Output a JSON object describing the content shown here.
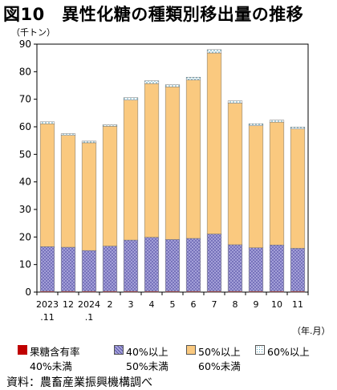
{
  "header": {
    "title": "図10　異性化糖の種類別移出量の推移"
  },
  "source_note": "資料：農畜産業振興機構調べ",
  "chart_data": {
    "type": "bar",
    "stacked": true,
    "title": "図10　異性化糖の種類別移出量の推移",
    "ylabel": "（千トン）",
    "xlabel": "（年.月）",
    "ylim": [
      0,
      90
    ],
    "yticks": [
      0,
      10,
      20,
      30,
      40,
      50,
      60,
      70,
      80,
      90
    ],
    "grid": false,
    "legend_position": "bottom",
    "categories": [
      {
        "line1": "2023",
        "line2": ".11"
      },
      {
        "line1": "12",
        "line2": ""
      },
      {
        "line1": "2024",
        "line2": ".1"
      },
      {
        "line1": "2",
        "line2": ""
      },
      {
        "line1": "3",
        "line2": ""
      },
      {
        "line1": "4",
        "line2": ""
      },
      {
        "line1": "5",
        "line2": ""
      },
      {
        "line1": "6",
        "line2": ""
      },
      {
        "line1": "7",
        "line2": ""
      },
      {
        "line1": "8",
        "line2": ""
      },
      {
        "line1": "9",
        "line2": ""
      },
      {
        "line1": "10",
        "line2": ""
      },
      {
        "line1": "11",
        "line2": ""
      }
    ],
    "series": [
      {
        "name": "果糖含有率40%未満",
        "legend_line1": "果糖含有率",
        "legend_line2": "40%未満",
        "color": "#c00000",
        "pattern": "solid",
        "values": [
          0.3,
          0.3,
          0.3,
          0.3,
          0.3,
          0.3,
          0.3,
          0.3,
          0.3,
          0.3,
          0.3,
          0.3,
          0.3
        ]
      },
      {
        "name": "40%以上50%未満",
        "legend_line1": "40%以上",
        "legend_line2": "50%未満",
        "color": "#a9a5dc",
        "pattern": "cross",
        "values": [
          16.2,
          16.0,
          14.8,
          16.4,
          18.6,
          19.6,
          18.8,
          19.2,
          20.8,
          16.9,
          15.8,
          16.8,
          15.6
        ]
      },
      {
        "name": "50%以上60%未満",
        "legend_line1": "50%以上",
        "legend_line2": "60%未満",
        "color": "#fac97f",
        "pattern": "solid",
        "values": [
          44.6,
          40.6,
          39.1,
          43.5,
          50.8,
          55.8,
          55.4,
          57.5,
          65.7,
          51.4,
          44.3,
          44.6,
          43.3
        ]
      },
      {
        "name": "60%以上",
        "legend_line1": "60%以上",
        "legend_line2": "",
        "color": "#b8dde8",
        "pattern": "dots",
        "values": [
          0.7,
          0.6,
          0.6,
          0.6,
          0.9,
          1.0,
          0.8,
          1.0,
          1.2,
          0.8,
          0.7,
          0.7,
          0.7
        ]
      }
    ]
  }
}
